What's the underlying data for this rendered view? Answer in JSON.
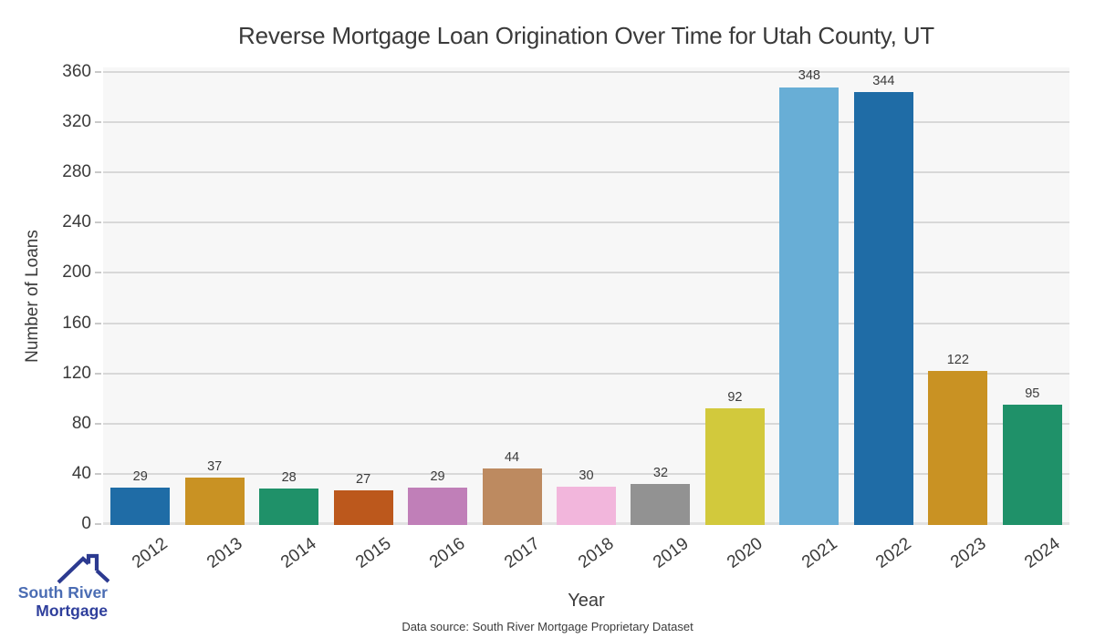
{
  "title": "Reverse Mortgage Loan Origination Over Time for Utah County, UT",
  "axes": {
    "x_label": "Year",
    "y_label": "Number of Loans"
  },
  "footer": {
    "source_note": "Data source: South River Mortgage Proprietary Dataset"
  },
  "logo": {
    "icon": "house-roof-chimney-icon",
    "line1": "South River",
    "line2": "Mortgage",
    "line1_color": "#4a6cb3",
    "line2_color": "#2f3f9c",
    "icon_color": "#2c3a90"
  },
  "colors": {
    "plot_background": "#f7f7f7",
    "gridline": "#d8d8d8",
    "baseline": "#e2e2e2",
    "tick_text": "#3b3b3b"
  },
  "chart_data": {
    "type": "bar",
    "title": "Reverse Mortgage Loan Origination Over Time for Utah County, UT",
    "xlabel": "Year",
    "ylabel": "Number of Loans",
    "categories": [
      "2012",
      "2013",
      "2014",
      "2015",
      "2016",
      "2017",
      "2018",
      "2019",
      "2020",
      "2021",
      "2022",
      "2023",
      "2024"
    ],
    "values": [
      29,
      37,
      28,
      27,
      29,
      44,
      30,
      32,
      92,
      348,
      344,
      122,
      95
    ],
    "bar_colors": [
      "#1f6ca6",
      "#c99223",
      "#1f9169",
      "#bc581c",
      "#c07fb8",
      "#bd8a60",
      "#f2b6dc",
      "#929292",
      "#d2c93c",
      "#68aed6",
      "#1f6ca6",
      "#c99223",
      "#1f9169"
    ],
    "value_labels": [
      "29",
      "37",
      "28",
      "27",
      "29",
      "44",
      "30",
      "32",
      "92",
      "348",
      "344",
      "122",
      "95"
    ],
    "ylim": [
      0,
      363.6
    ],
    "yticks": [
      0,
      40,
      80,
      120,
      160,
      200,
      240,
      280,
      320,
      360
    ],
    "grid": "horizontal",
    "legend": "none"
  }
}
